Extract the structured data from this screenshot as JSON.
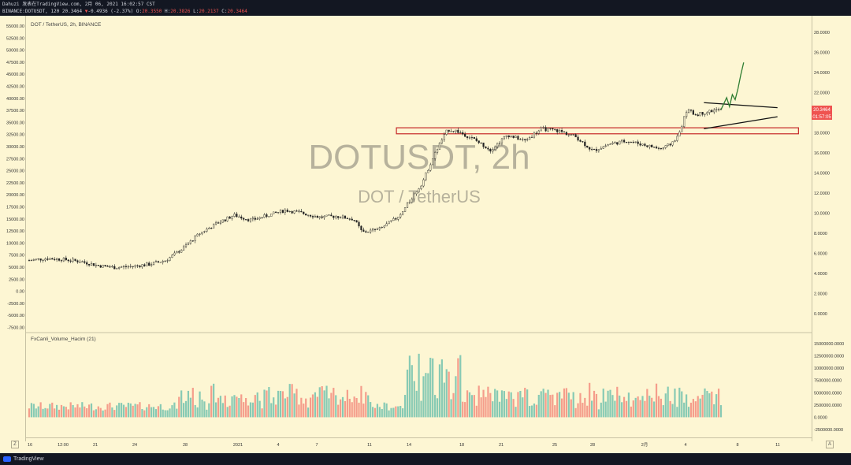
{
  "header": {
    "line1": "Dahuzi 发表在TradingView.com, 2月 06, 2021 16:02:57 CST",
    "symbol_prefix": "BINANCE:DOTUSDT, 120 20.3464",
    "change_arrow": "▼",
    "change": "-0.4936 (-2.37%)",
    "o_label": "O:",
    "o_value": "20.3550",
    "h_label": "H:",
    "h_value": "20.3826",
    "l_label": "L:",
    "l_value": "20.2137",
    "c_label": "C:",
    "c_value": "20.3464"
  },
  "legend": {
    "symbol": "DOT / TetherUS, 2h, BINANCE",
    "indicator": "FxCanli_Volume_Hacim (21)"
  },
  "watermark": {
    "main": "DOTUSDT, 2h",
    "sub": "DOT / TetherUS"
  },
  "left_axis_labels": [
    "55000.00",
    "52500.00",
    "50000.00",
    "47500.00",
    "45000.00",
    "42500.00",
    "40000.00",
    "37500.00",
    "35000.00",
    "32500.00",
    "30000.00",
    "27500.00",
    "25000.00",
    "22500.00",
    "20000.00",
    "17500.00",
    "15000.00",
    "12500.00",
    "10000.00",
    "7500.00",
    "5000.00",
    "2500.00",
    "0.00",
    "-2500.00",
    "-5000.00",
    "-7500.00"
  ],
  "right_axis_labels": [
    "28.0000",
    "26.0000",
    "24.0000",
    "22.0000",
    "20.0000",
    "18.0000",
    "16.0000",
    "14.0000",
    "12.0000",
    "10.0000",
    "8.0000",
    "6.0000",
    "4.0000",
    "2.0000",
    "0.0000"
  ],
  "volume_axis_labels": [
    "15000000.0000",
    "12500000.0000",
    "10000000.0000",
    "7500000.0000",
    "5000000.0000",
    "2500000.0000",
    "0.0000",
    "-2500000.0000"
  ],
  "price_tag": {
    "price": "20.3464",
    "countdown": "01:57:05",
    "color": "#ef5350"
  },
  "time_axis_labels": [
    "16",
    "12:00",
    "21",
    "24",
    "28",
    "2021",
    "4",
    "7",
    "11",
    "14",
    "18",
    "21",
    "25",
    "28",
    "2月",
    "4",
    "8",
    "11"
  ],
  "footer": {
    "brand": "TradingView"
  },
  "corner": {
    "left": "Z",
    "right": "A"
  },
  "colors": {
    "background": "#fdf6d3",
    "up": "#26a69a",
    "down": "#ef5350",
    "candle": "#222222",
    "projection": "#2e7d32",
    "zone": "#c62828"
  },
  "chart_data": {
    "type": "line",
    "title": "DOT / TetherUS, 2h, BINANCE",
    "price_range": [
      0,
      28
    ],
    "price_path": [
      [
        0,
        5.3
      ],
      [
        4,
        5.5
      ],
      [
        8,
        5.4
      ],
      [
        12,
        5.2
      ],
      [
        16,
        4.8
      ],
      [
        20,
        4.6
      ],
      [
        24,
        4.7
      ],
      [
        28,
        4.9
      ],
      [
        32,
        5.3
      ],
      [
        36,
        6.5
      ],
      [
        40,
        8.0
      ],
      [
        44,
        9.0
      ],
      [
        48,
        9.8
      ],
      [
        52,
        9.3
      ],
      [
        56,
        9.8
      ],
      [
        60,
        10.3
      ],
      [
        64,
        10.0
      ],
      [
        68,
        9.6
      ],
      [
        72,
        9.7
      ],
      [
        76,
        9.4
      ],
      [
        78,
        8.1
      ],
      [
        82,
        8.4
      ],
      [
        86,
        9.5
      ],
      [
        88,
        10.5
      ],
      [
        92,
        13.0
      ],
      [
        94,
        15.0
      ],
      [
        96,
        16.8
      ],
      [
        98,
        18.3
      ],
      [
        100,
        18.2
      ],
      [
        104,
        17.4
      ],
      [
        108,
        16.3
      ],
      [
        112,
        17.8
      ],
      [
        116,
        17.2
      ],
      [
        120,
        18.4
      ],
      [
        124,
        18.2
      ],
      [
        128,
        17.6
      ],
      [
        132,
        16.2
      ],
      [
        136,
        16.9
      ],
      [
        140,
        17.2
      ],
      [
        144,
        16.8
      ],
      [
        148,
        16.4
      ],
      [
        150,
        16.8
      ],
      [
        152,
        17.7
      ],
      [
        154,
        20.3
      ],
      [
        156,
        19.8
      ],
      [
        158,
        20.0
      ],
      [
        160,
        20.2
      ],
      [
        162,
        20.3
      ]
    ],
    "projection": [
      [
        162,
        20.3
      ],
      [
        164,
        21.5
      ],
      [
        165,
        20.6
      ],
      [
        166,
        21.8
      ],
      [
        167,
        21.3
      ],
      [
        168,
        22.4
      ],
      [
        169,
        23.8
      ],
      [
        170,
        25.0
      ]
    ],
    "resistance_zone": [
      17.9,
      18.5
    ],
    "triangle_upper": [
      [
        158,
        21.0
      ],
      [
        166,
        20.5
      ]
    ],
    "triangle_lower": [
      [
        158,
        18.4
      ],
      [
        166,
        19.6
      ]
    ],
    "volume_axis_range": [
      -2500000,
      15000000
    ],
    "volume_peak": 11500000
  }
}
